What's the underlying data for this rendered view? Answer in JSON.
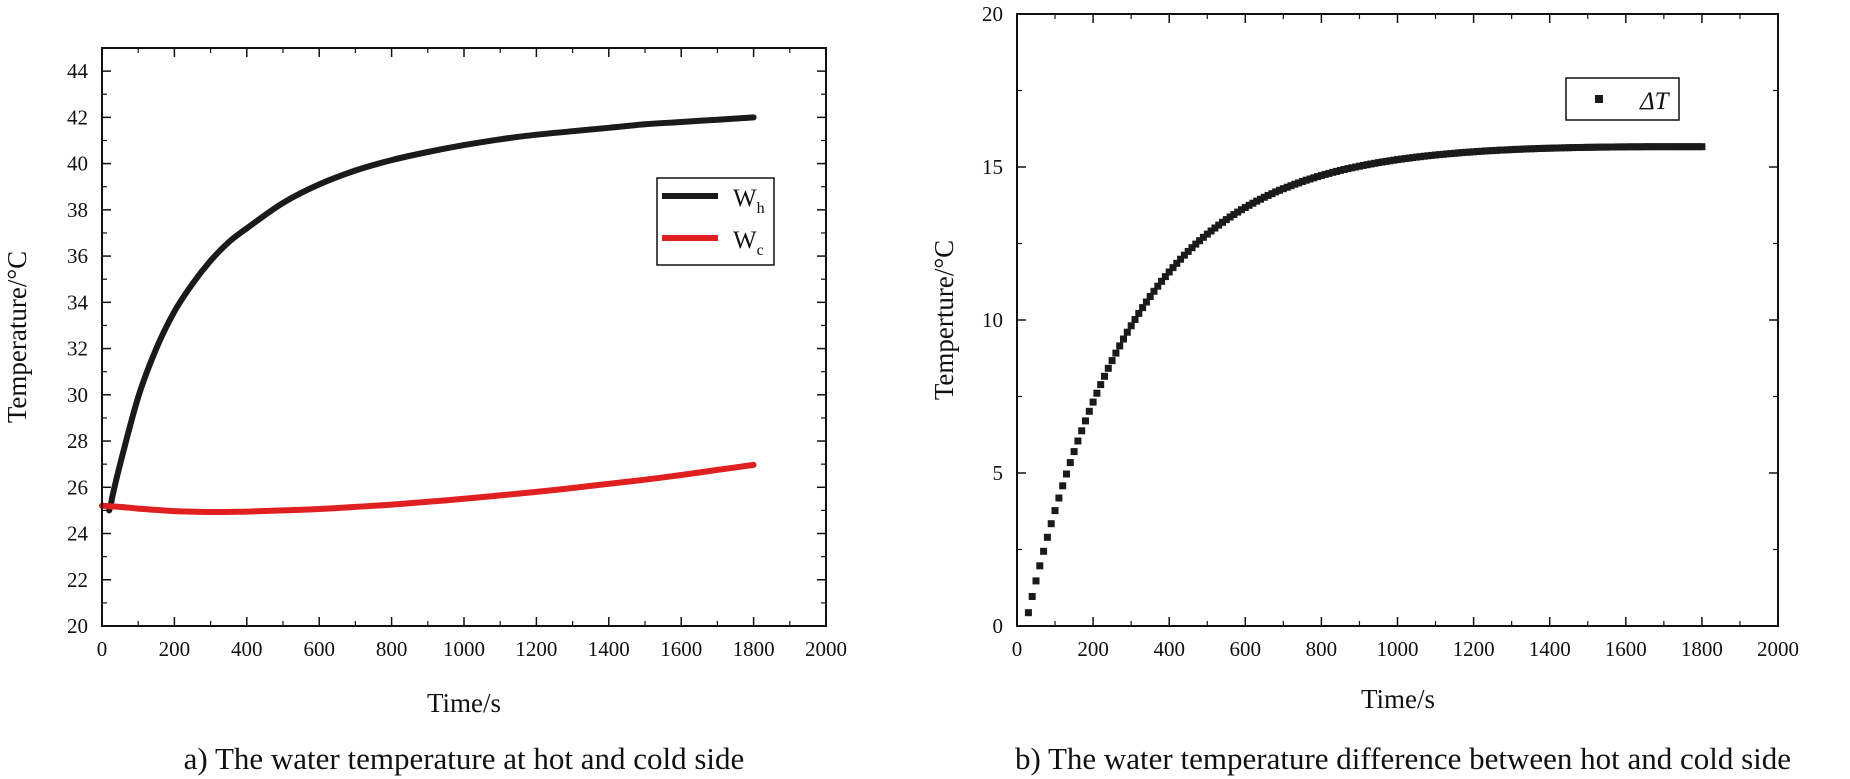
{
  "chart_data": [
    {
      "type": "line",
      "caption": "a) The water temperature at hot and cold side",
      "xlabel": "Time/s",
      "ylabel": "Temperature/°C",
      "xlim": [
        0,
        2000
      ],
      "ylim": [
        20,
        45
      ],
      "xticks": [
        0,
        200,
        400,
        600,
        800,
        1000,
        1200,
        1400,
        1600,
        1800,
        2000
      ],
      "yticks": [
        20,
        22,
        24,
        26,
        28,
        30,
        32,
        34,
        36,
        38,
        40,
        42,
        44
      ],
      "legend_position": "right",
      "series": [
        {
          "name": "W",
          "sub": "h",
          "color": "#1a1a1a",
          "x": [
            20,
            25,
            30,
            50,
            100,
            150,
            200,
            250,
            300,
            350,
            400,
            500,
            600,
            700,
            800,
            900,
            1000,
            1100,
            1200,
            1300,
            1400,
            1500,
            1600,
            1700,
            1800
          ],
          "y": [
            25.0,
            25.3,
            25.7,
            27.0,
            29.9,
            32.0,
            33.6,
            34.8,
            35.8,
            36.6,
            37.2,
            38.3,
            39.1,
            39.7,
            40.15,
            40.5,
            40.8,
            41.05,
            41.25,
            41.4,
            41.55,
            41.7,
            41.8,
            41.9,
            42.0
          ]
        },
        {
          "name": "W",
          "sub": "c",
          "color": "#e02020",
          "x": [
            0,
            50,
            100,
            150,
            200,
            300,
            400,
            500,
            600,
            700,
            800,
            900,
            1000,
            1100,
            1200,
            1300,
            1400,
            1500,
            1600,
            1700,
            1800
          ],
          "y": [
            25.2,
            25.15,
            25.08,
            25.02,
            24.97,
            24.93,
            24.95,
            25.0,
            25.06,
            25.15,
            25.25,
            25.37,
            25.5,
            25.65,
            25.8,
            25.97,
            26.15,
            26.33,
            26.53,
            26.75,
            26.97
          ]
        }
      ]
    },
    {
      "type": "scatter",
      "caption": "b) The water temperature difference between hot and cold side",
      "xlabel": "Time/s",
      "ylabel": "Temperture/°C",
      "xlim": [
        0,
        2000
      ],
      "ylim": [
        0,
        20
      ],
      "xticks": [
        0,
        200,
        400,
        600,
        800,
        1000,
        1200,
        1400,
        1600,
        1800,
        2000
      ],
      "yticks": [
        0,
        5,
        10,
        15,
        20
      ],
      "legend_position": "top-right",
      "series": [
        {
          "name": "ΔT",
          "color": "#1a1a1a",
          "marker": "square",
          "x_start": 30,
          "x_end": 1800,
          "x_step": 10,
          "t_tau": 285,
          "dt_max": 15.75,
          "t0": 22,
          "t_decline": 1200,
          "decline_rate": 2.05e-05
        }
      ]
    }
  ]
}
